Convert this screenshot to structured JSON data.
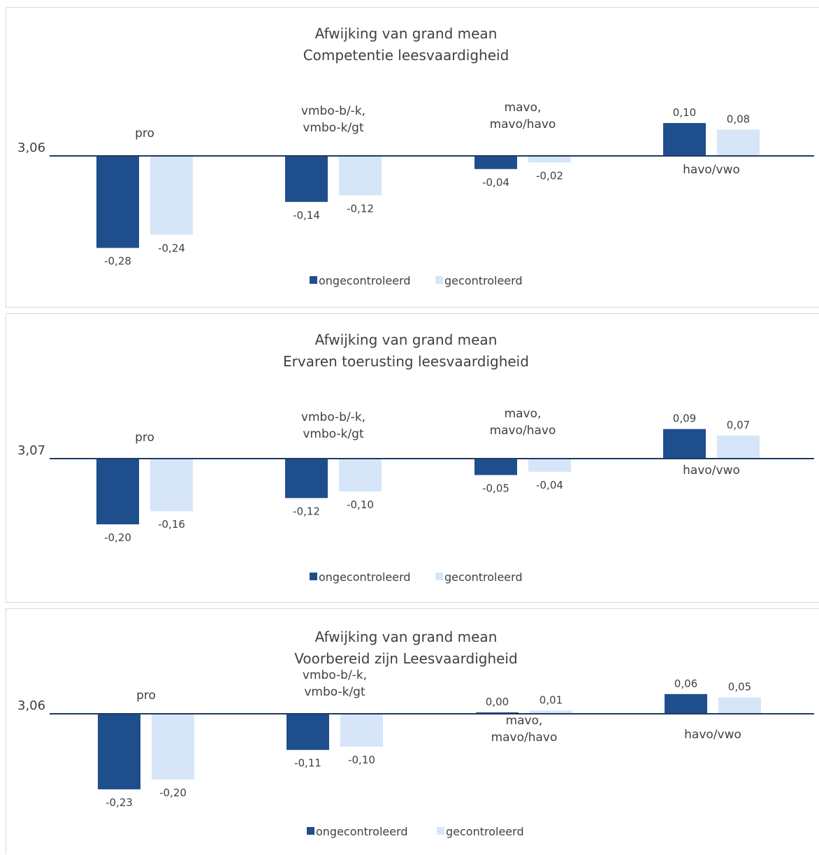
{
  "chart_data": [
    {
      "type": "bar",
      "title": [
        "Afwijking van grand mean",
        "Competentie leesvaardigheid"
      ],
      "baseline_label": "3,06",
      "categories": [
        [
          "pro"
        ],
        [
          "vmbo-b/-k,",
          "vmbo-k/gt"
        ],
        [
          "mavo,",
          "mavo/havo"
        ],
        [
          "havo/vwo"
        ]
      ],
      "series": [
        {
          "name": "ongecontroleerd",
          "color": "#1f4e8c",
          "values": [
            -0.28,
            -0.14,
            -0.04,
            0.1
          ],
          "labels": [
            "-0,28",
            "-0,14",
            "-0,04",
            "0,10"
          ]
        },
        {
          "name": "gecontroleerd",
          "color": "#d6e6f8",
          "values": [
            -0.24,
            -0.12,
            -0.02,
            0.08
          ],
          "labels": [
            "-0,24",
            "-0,12",
            "-0,02",
            "0,08"
          ]
        }
      ]
    },
    {
      "type": "bar",
      "title": [
        "Afwijking van grand mean",
        "Ervaren toerusting leesvaardigheid"
      ],
      "baseline_label": "3,07",
      "categories": [
        [
          "pro"
        ],
        [
          "vmbo-b/-k,",
          "vmbo-k/gt"
        ],
        [
          "mavo,",
          "mavo/havo"
        ],
        [
          "havo/vwo"
        ]
      ],
      "series": [
        {
          "name": "ongecontroleerd",
          "color": "#1f4e8c",
          "values": [
            -0.2,
            -0.12,
            -0.05,
            0.09
          ],
          "labels": [
            "-0,20",
            "-0,12",
            "-0,05",
            "0,09"
          ]
        },
        {
          "name": "gecontroleerd",
          "color": "#d6e6f8",
          "values": [
            -0.16,
            -0.1,
            -0.04,
            0.07
          ],
          "labels": [
            "-0,16",
            "-0,10",
            "-0,04",
            "0,07"
          ]
        }
      ]
    },
    {
      "type": "bar",
      "title": [
        "Afwijking van grand mean",
        "Voorbereid zijn Leesvaardigheid"
      ],
      "baseline_label": "3,06",
      "categories": [
        [
          "pro"
        ],
        [
          "vmbo-b/-k,",
          "vmbo-k/gt"
        ],
        [
          "mavo,",
          "mavo/havo"
        ],
        [
          "havo/vwo"
        ]
      ],
      "series": [
        {
          "name": "ongecontroleerd",
          "color": "#1f4e8c",
          "values": [
            -0.23,
            -0.11,
            0.0,
            0.06
          ],
          "labels": [
            "-0,23",
            "-0,11",
            "0,00",
            "0,06"
          ]
        },
        {
          "name": "gecontroleerd",
          "color": "#d6e6f8",
          "values": [
            -0.2,
            -0.1,
            0.01,
            0.05
          ],
          "labels": [
            "-0,20",
            "-0,10",
            "0,01",
            "0,05"
          ]
        }
      ]
    }
  ]
}
